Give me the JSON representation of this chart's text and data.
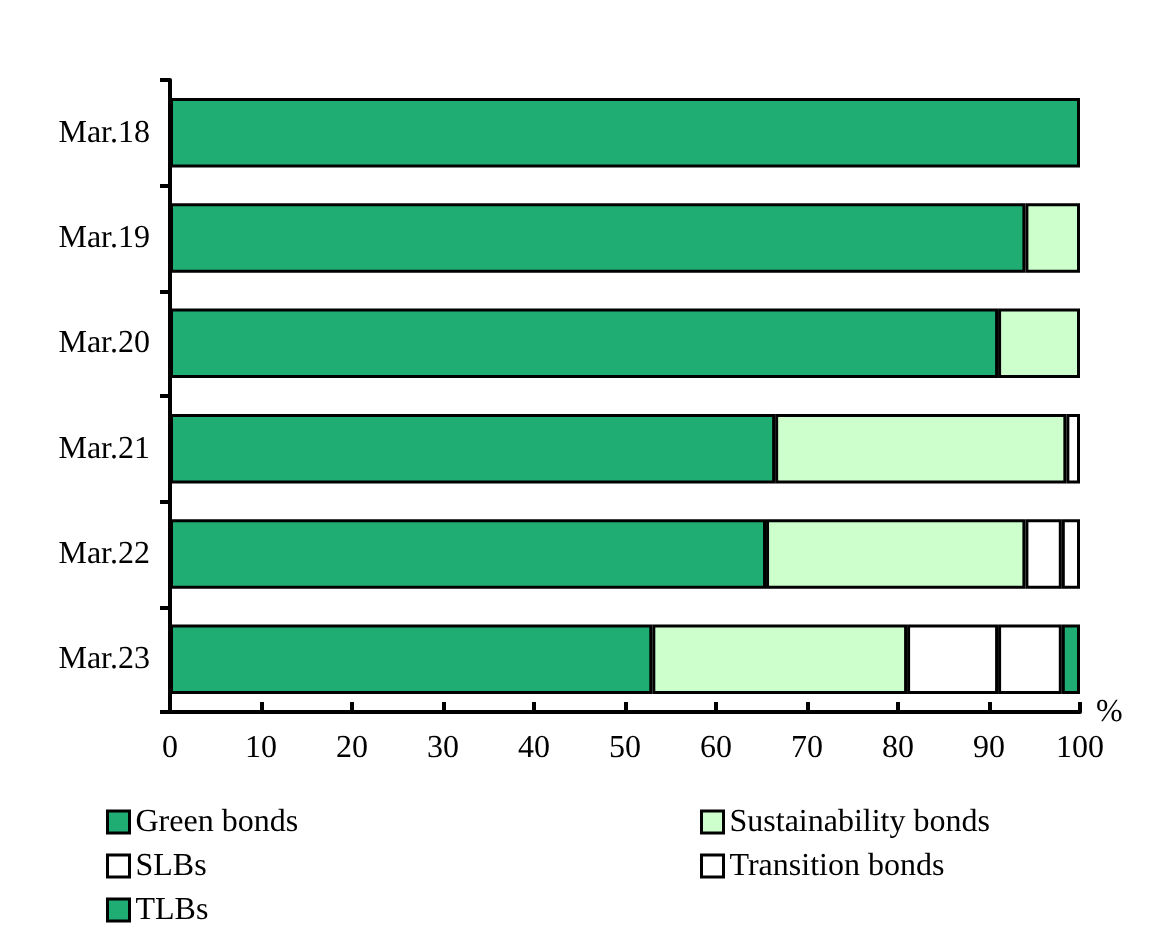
{
  "chart_data": {
    "type": "bar",
    "orientation": "horizontal",
    "stacked": true,
    "categories": [
      "Mar.18",
      "Mar.19",
      "Mar.20",
      "Mar.21",
      "Mar.22",
      "Mar.23"
    ],
    "xlabel": "%",
    "xlim": [
      0,
      100
    ],
    "xticks": [
      0,
      10,
      20,
      30,
      40,
      50,
      60,
      70,
      80,
      90,
      100
    ],
    "grid": false,
    "legend": "bottom",
    "series": [
      {
        "name": "Green bonds",
        "color": "#20ad74",
        "values": [
          100,
          94,
          91,
          66.5,
          65.5,
          53
        ]
      },
      {
        "name": "Sustainability bonds",
        "color": "#ccffcc",
        "values": [
          0,
          6,
          9,
          32,
          28.5,
          28
        ]
      },
      {
        "name": "SLBs",
        "color": "#ffffff",
        "values": [
          0,
          0,
          0,
          1.5,
          4,
          10
        ]
      },
      {
        "name": "Transition bonds",
        "color": "#ffffff",
        "values": [
          0,
          0,
          0,
          0,
          2,
          7
        ]
      },
      {
        "name": "TLBs",
        "color": "#20ad74",
        "values": [
          0,
          0,
          0,
          0,
          0,
          2
        ]
      }
    ]
  }
}
